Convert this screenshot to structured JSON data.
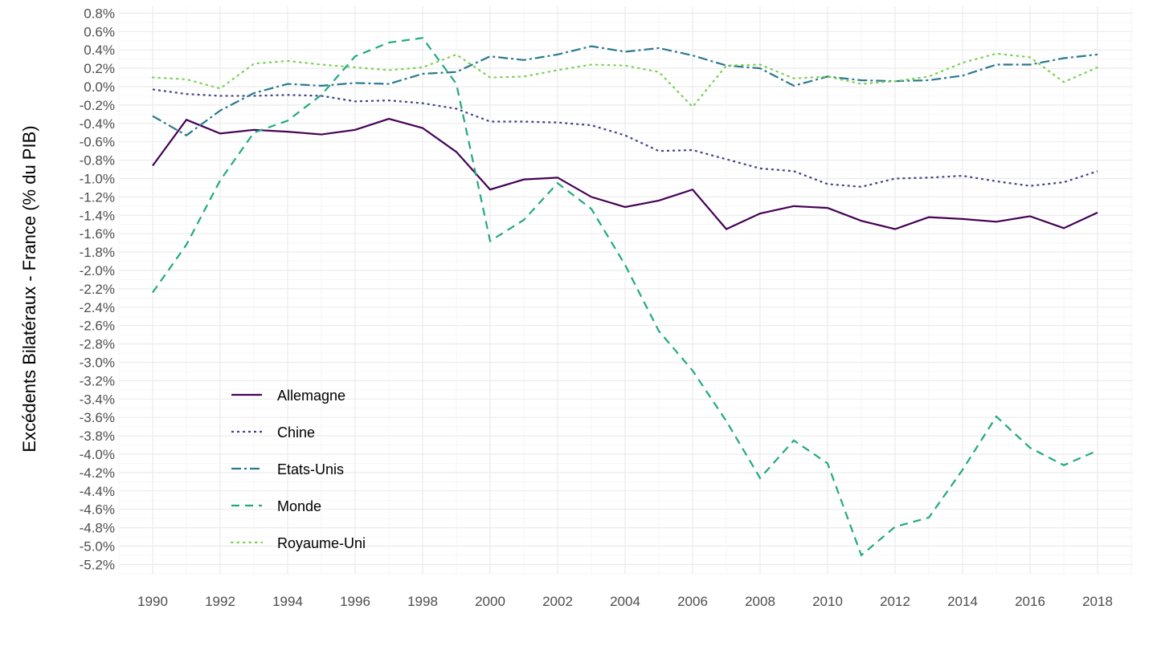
{
  "chart_data": {
    "type": "line",
    "title": "",
    "xlabel": "",
    "ylabel": "Excédents Bilatéraux - France (% du PIB)",
    "x": [
      1990,
      1991,
      1992,
      1993,
      1994,
      1995,
      1996,
      1997,
      1998,
      1999,
      2000,
      2001,
      2002,
      2003,
      2004,
      2005,
      2006,
      2007,
      2008,
      2009,
      2010,
      2011,
      2012,
      2013,
      2014,
      2015,
      2016,
      2017,
      2018
    ],
    "xlim": [
      1989,
      2019
    ],
    "ylim": [
      -5.3,
      0.85
    ],
    "x_ticks": [
      "1990",
      "1992",
      "1994",
      "1996",
      "1998",
      "2000",
      "2002",
      "2004",
      "2006",
      "2008",
      "2010",
      "2012",
      "2014",
      "2016",
      "2018"
    ],
    "y_ticks": [
      "0.8%",
      "0.6%",
      "0.4%",
      "0.2%",
      "0.0%",
      "-0.2%",
      "-0.4%",
      "-0.6%",
      "-0.8%",
      "-1.0%",
      "-1.2%",
      "-1.4%",
      "-1.6%",
      "-1.8%",
      "-2.0%",
      "-2.2%",
      "-2.4%",
      "-2.6%",
      "-2.8%",
      "-3.0%",
      "-3.2%",
      "-3.4%",
      "-3.6%",
      "-3.8%",
      "-4.0%",
      "-4.2%",
      "-4.4%",
      "-4.6%",
      "-4.8%",
      "-5.0%",
      "-5.2%"
    ],
    "grid": true,
    "legend_position": "bottom-left-inside",
    "series": [
      {
        "name": "Allemagne",
        "color": "#440154",
        "dash": "solid",
        "values": [
          -0.86,
          -0.36,
          -0.51,
          -0.47,
          -0.49,
          -0.52,
          -0.47,
          -0.35,
          -0.45,
          -0.71,
          -1.12,
          -1.01,
          -0.99,
          -1.2,
          -1.31,
          -1.24,
          -1.12,
          -1.55,
          -1.38,
          -1.3,
          -1.32,
          -1.46,
          -1.55,
          -1.42,
          -1.44,
          -1.47,
          -1.41,
          -1.54,
          -1.37
        ]
      },
      {
        "name": "Chine",
        "color": "#414487",
        "dash": "short",
        "values": [
          -0.03,
          -0.08,
          -0.1,
          -0.1,
          -0.09,
          -0.1,
          -0.16,
          -0.15,
          -0.18,
          -0.24,
          -0.38,
          -0.38,
          -0.39,
          -0.42,
          -0.53,
          -0.7,
          -0.69,
          -0.79,
          -0.89,
          -0.92,
          -1.06,
          -1.09,
          -1.0,
          -0.99,
          -0.97,
          -1.03,
          -1.08,
          -1.04,
          -0.92
        ]
      },
      {
        "name": "Etats-Unis",
        "color": "#2A788E",
        "dash": "dashdot",
        "values": [
          -0.32,
          -0.53,
          -0.26,
          -0.07,
          0.03,
          0.01,
          0.04,
          0.03,
          0.14,
          0.16,
          0.33,
          0.29,
          0.35,
          0.44,
          0.38,
          0.42,
          0.34,
          0.23,
          0.2,
          0.01,
          0.11,
          0.07,
          0.06,
          0.07,
          0.12,
          0.24,
          0.24,
          0.31,
          0.35
        ]
      },
      {
        "name": "Monde",
        "color": "#22A884",
        "dash": "long",
        "values": [
          -2.24,
          -1.72,
          -1.02,
          -0.5,
          -0.37,
          -0.09,
          0.33,
          0.48,
          0.53,
          0.03,
          -1.68,
          -1.45,
          -1.05,
          -1.33,
          -1.94,
          -2.66,
          -3.09,
          -3.64,
          -4.26,
          -3.85,
          -4.1,
          -5.1,
          -4.79,
          -4.69,
          -4.17,
          -3.59,
          -3.93,
          -4.12,
          -3.96
        ]
      },
      {
        "name": "Royaume-Uni",
        "color": "#7AD151",
        "dash": "dotted",
        "values": [
          0.1,
          0.08,
          -0.02,
          0.25,
          0.28,
          0.24,
          0.21,
          0.18,
          0.21,
          0.35,
          0.1,
          0.11,
          0.18,
          0.24,
          0.23,
          0.16,
          -0.22,
          0.23,
          0.24,
          0.09,
          0.11,
          0.03,
          0.06,
          0.11,
          0.26,
          0.36,
          0.32,
          0.05,
          0.21
        ]
      }
    ]
  }
}
